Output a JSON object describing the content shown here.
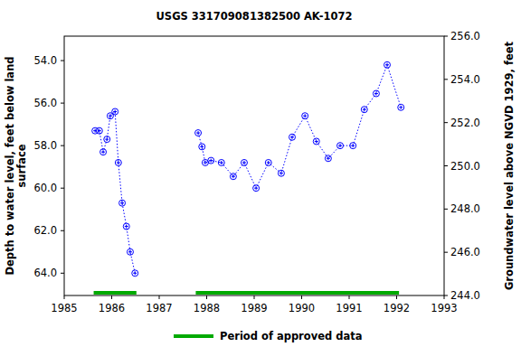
{
  "chart_data": {
    "type": "line",
    "title": "USGS 331709081382500 AK-1072",
    "ylabel": [
      "Depth to water level, feet below land",
      "surface"
    ],
    "y2label": "Groundwater level above NGVD 1929, feet",
    "x": [
      1985.65,
      1985.74,
      1985.82,
      1985.9,
      1985.97,
      1986.07,
      1986.14,
      1986.22,
      1986.31,
      1986.39,
      1986.49,
      null,
      1987.82,
      1987.9,
      1987.97,
      1988.09,
      1988.31,
      1988.56,
      1988.79,
      1989.04,
      1989.3,
      1989.57,
      1989.8,
      1990.07,
      1990.31,
      1990.56,
      1990.81,
      1991.08,
      1991.32,
      1991.57,
      1991.8,
      1992.09
    ],
    "series": [
      {
        "color": "#0000ff",
        "marker": "circle",
        "line_style": "dotted",
        "values": [
          57.3,
          57.3,
          58.3,
          57.7,
          56.6,
          56.4,
          58.8,
          60.7,
          61.8,
          63.0,
          64.0,
          null,
          57.4,
          58.05,
          58.8,
          58.7,
          58.8,
          59.45,
          58.8,
          60.0,
          58.8,
          59.3,
          57.6,
          56.6,
          57.8,
          58.6,
          58.0,
          58.0,
          56.3,
          55.55,
          54.2,
          56.2
        ]
      }
    ],
    "xlim": [
      1985,
      1993
    ],
    "xticks": [
      1985,
      1986,
      1987,
      1988,
      1989,
      1990,
      1991,
      1992,
      1993
    ],
    "ylim": [
      52.85,
      65.05
    ],
    "yticks": [
      {
        "value": 54,
        "label": "54.0"
      },
      {
        "value": 56,
        "label": "56.0"
      },
      {
        "value": 58,
        "label": "58.0"
      },
      {
        "value": 60,
        "label": "60.0"
      },
      {
        "value": 62,
        "label": "62.0"
      },
      {
        "value": 64,
        "label": "64.0"
      }
    ],
    "y2lim": [
      244,
      256
    ],
    "y2ticks": [
      {
        "value": 244,
        "label": "244.0"
      },
      {
        "value": 246,
        "label": "246.0"
      },
      {
        "value": 248,
        "label": "248.0"
      },
      {
        "value": 250,
        "label": "250.0"
      },
      {
        "value": 252,
        "label": "252.0"
      },
      {
        "value": 254,
        "label": "254.0"
      },
      {
        "value": 256,
        "label": "256.0"
      }
    ],
    "grid": false,
    "approved": {
      "label": "Period of approved data",
      "color": "#00aa00",
      "periods": [
        [
          1985.62,
          1986.52
        ],
        [
          1987.77,
          1992.05
        ]
      ]
    }
  }
}
